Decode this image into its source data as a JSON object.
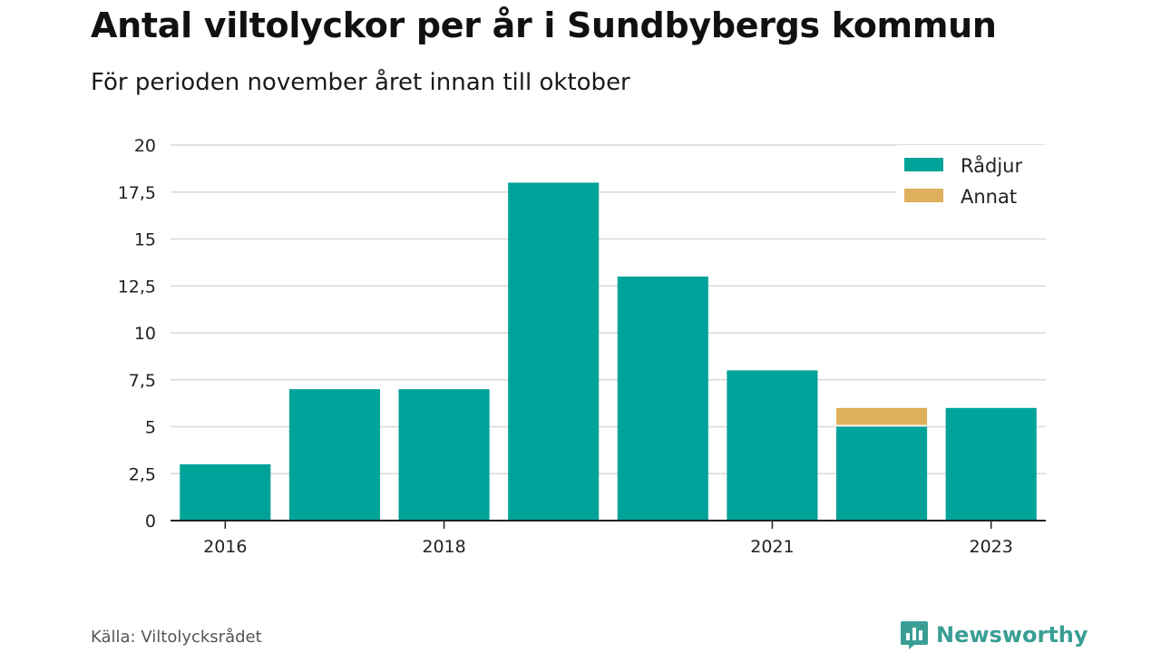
{
  "title": "Antal viltolyckor per år i Sundbybergs kommun",
  "subtitle": "För perioden november året innan till oktober",
  "source": "Källa: Viltolycksrådet",
  "brand": {
    "name": "Newsworthy",
    "icon": "newsworthy-logo-icon",
    "color": "#3a9e94"
  },
  "chart_data": {
    "type": "bar",
    "stacked": true,
    "title": "Antal viltolyckor per år i Sundbybergs kommun",
    "subtitle": "För perioden november året innan till oktober",
    "xlabel": "",
    "ylabel": "",
    "categories": [
      "2016",
      "2017",
      "2018",
      "2019",
      "2020",
      "2021",
      "2022",
      "2023"
    ],
    "x_tick_labels": [
      "2016",
      "",
      "2018",
      "",
      "",
      "2021",
      "",
      "2023"
    ],
    "series": [
      {
        "name": "Rådjur",
        "color": "#00a39a",
        "values": [
          3,
          7,
          7,
          18,
          13,
          8,
          5,
          6
        ]
      },
      {
        "name": "Annat",
        "color": "#deaf5c",
        "values": [
          0,
          0,
          0,
          0,
          0,
          0,
          1,
          0
        ]
      }
    ],
    "ylim": [
      0,
      20
    ],
    "y_ticks": [
      0,
      2.5,
      5,
      7.5,
      10,
      12.5,
      15,
      17.5,
      20
    ],
    "y_tick_labels": [
      "0",
      "2,5",
      "5",
      "7,5",
      "10",
      "12,5",
      "15",
      "17,5",
      "20"
    ],
    "grid": true,
    "legend": "top-right"
  }
}
